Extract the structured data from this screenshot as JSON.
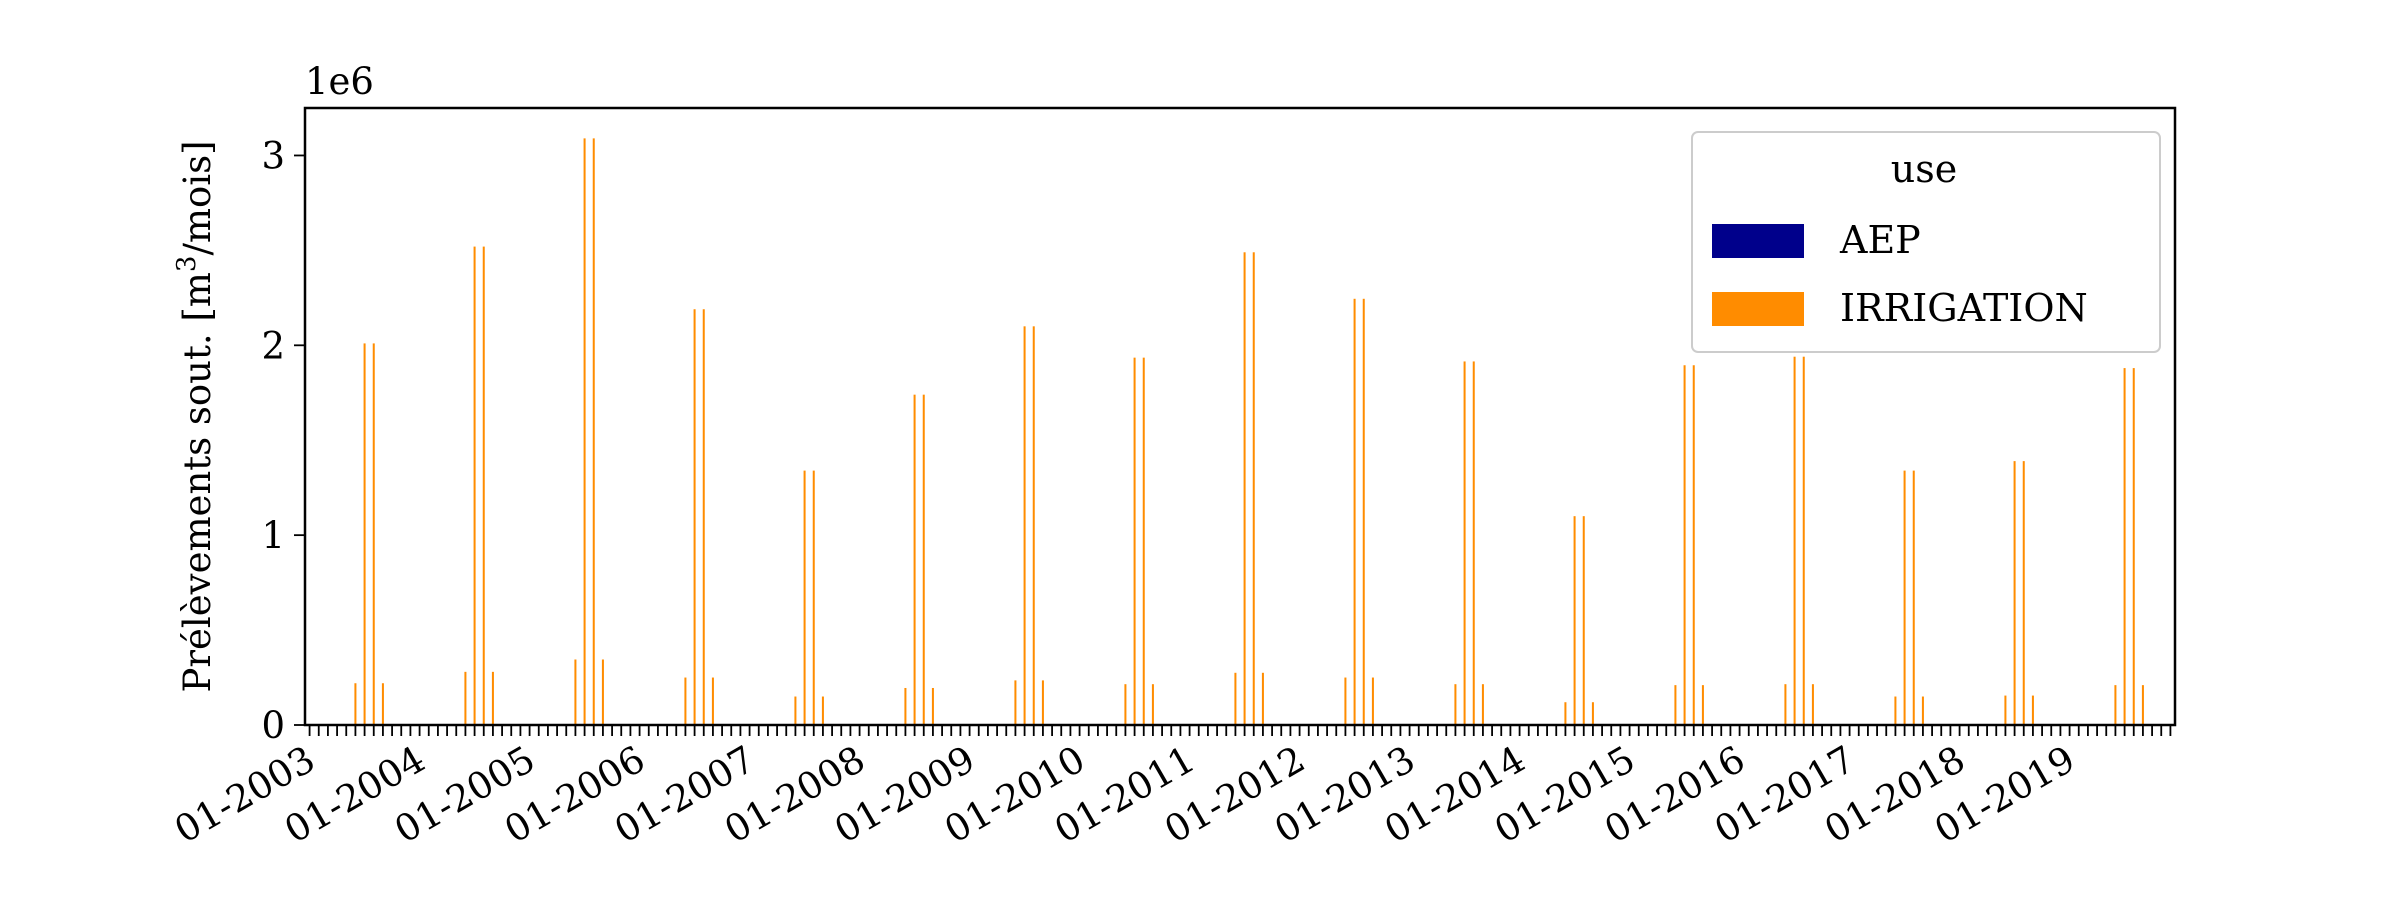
{
  "chart_data": {
    "type": "bar",
    "ylabel": "Prélèvements sout. [m³/mois]",
    "y_offset_label": "1e6",
    "ylim": [
      0,
      3250000
    ],
    "yticks": [
      0,
      1000000,
      2000000,
      3000000
    ],
    "ytick_labels": [
      "0",
      "1",
      "2",
      "3"
    ],
    "x_start": "01-2003",
    "x_tick_labels": [
      "01-2003",
      "01-2004",
      "01-2005",
      "01-2006",
      "01-2007",
      "01-2008",
      "01-2009",
      "01-2010",
      "01-2011",
      "01-2012",
      "01-2013",
      "01-2014",
      "01-2015",
      "01-2016",
      "01-2017",
      "01-2018",
      "01-2019"
    ],
    "legend": {
      "title": "use",
      "position": "upper right"
    },
    "series": [
      {
        "name": "AEP",
        "color": "#00008b",
        "values": "all zero"
      },
      {
        "name": "IRRIGATION",
        "color": "#ff8c00",
        "yearly_pattern": {
          "months": [
            "06",
            "07",
            "08",
            "09"
          ],
          "description": "non-zero only June–September each year"
        },
        "years": [
          {
            "year": 2003,
            "jun": 220000,
            "jul": 2010000,
            "aug": 2010000,
            "sep": 220000
          },
          {
            "year": 2004,
            "jun": 280000,
            "jul": 2520000,
            "aug": 2520000,
            "sep": 280000
          },
          {
            "year": 2005,
            "jun": 345000,
            "jul": 3090000,
            "aug": 3090000,
            "sep": 345000
          },
          {
            "year": 2006,
            "jun": 250000,
            "jul": 2190000,
            "aug": 2190000,
            "sep": 250000
          },
          {
            "year": 2007,
            "jun": 150000,
            "jul": 1340000,
            "aug": 1340000,
            "sep": 150000
          },
          {
            "year": 2008,
            "jun": 195000,
            "jul": 1740000,
            "aug": 1740000,
            "sep": 195000
          },
          {
            "year": 2009,
            "jun": 235000,
            "jul": 2100000,
            "aug": 2100000,
            "sep": 235000
          },
          {
            "year": 2010,
            "jun": 215000,
            "jul": 1935000,
            "aug": 1935000,
            "sep": 215000
          },
          {
            "year": 2011,
            "jun": 275000,
            "jul": 2490000,
            "aug": 2490000,
            "sep": 275000
          },
          {
            "year": 2012,
            "jun": 250000,
            "jul": 2245000,
            "aug": 2245000,
            "sep": 250000
          },
          {
            "year": 2013,
            "jun": 215000,
            "jul": 1915000,
            "aug": 1915000,
            "sep": 215000
          },
          {
            "year": 2014,
            "jun": 120000,
            "jul": 1100000,
            "aug": 1100000,
            "sep": 120000
          },
          {
            "year": 2015,
            "jun": 210000,
            "jul": 1895000,
            "aug": 1895000,
            "sep": 210000
          },
          {
            "year": 2016,
            "jun": 215000,
            "jul": 1940000,
            "aug": 1940000,
            "sep": 215000
          },
          {
            "year": 2017,
            "jun": 150000,
            "jul": 1340000,
            "aug": 1340000,
            "sep": 150000
          },
          {
            "year": 2018,
            "jun": 155000,
            "jul": 1390000,
            "aug": 1390000,
            "sep": 155000
          },
          {
            "year": 2019,
            "jun": 210000,
            "jul": 1880000,
            "aug": 1880000,
            "sep": 210000
          }
        ]
      }
    ]
  }
}
